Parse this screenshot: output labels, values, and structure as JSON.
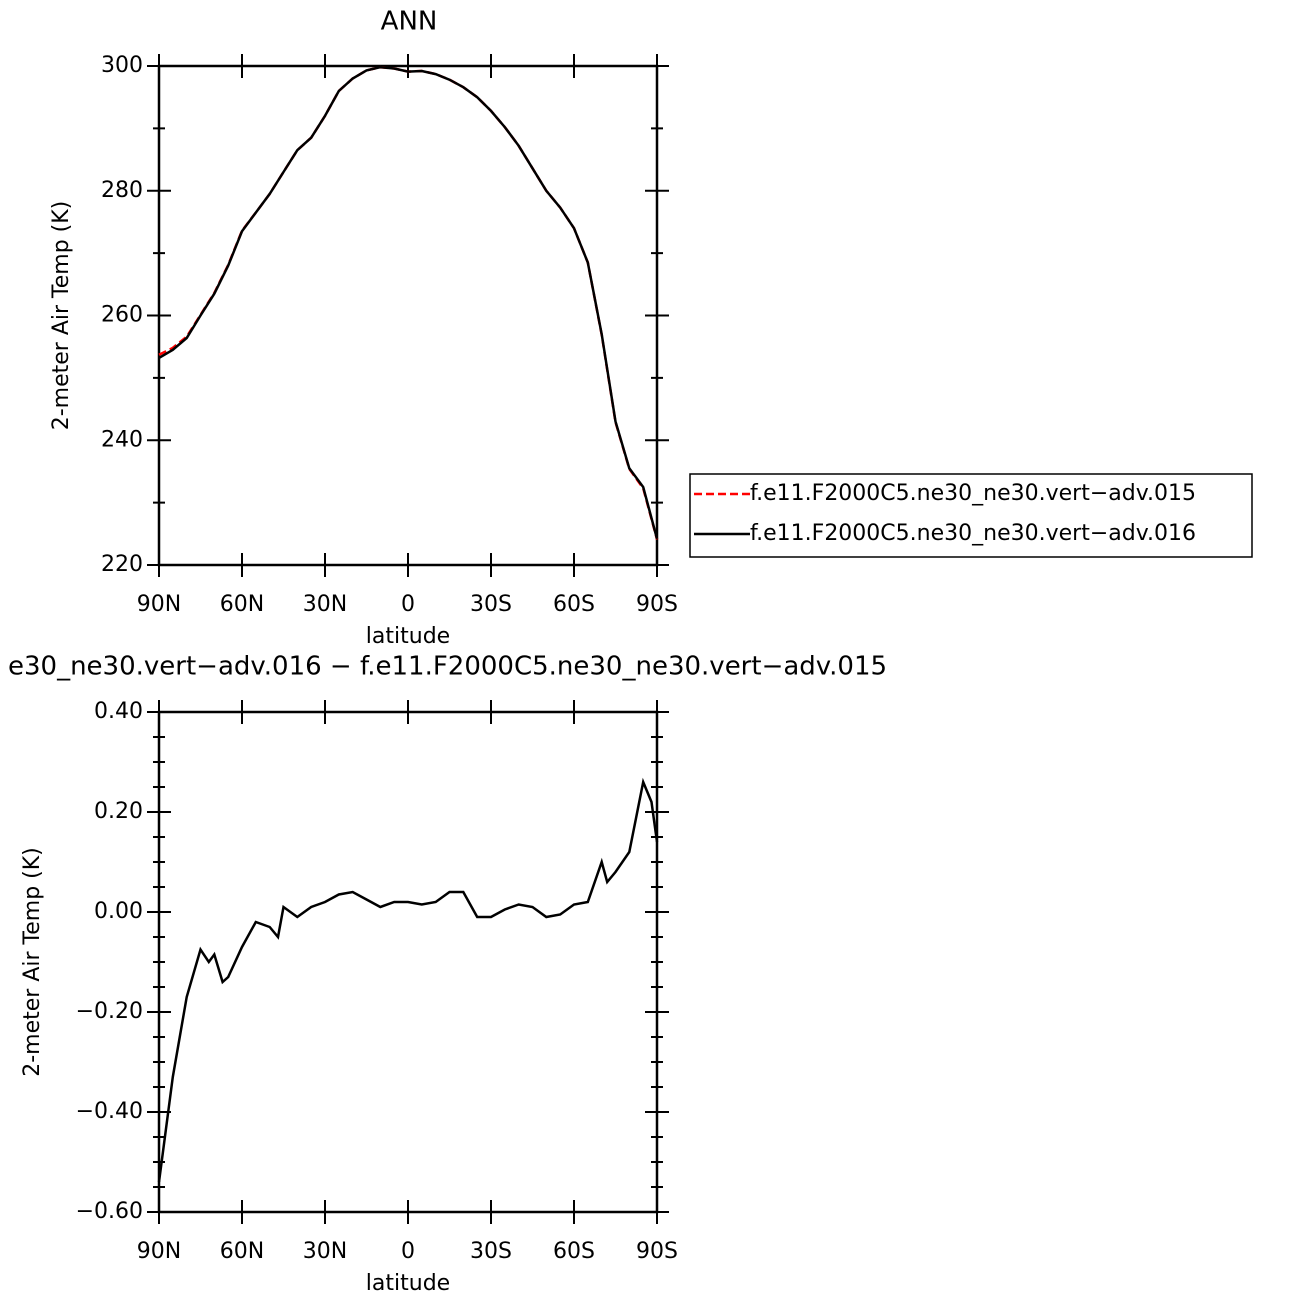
{
  "chart_data": [
    {
      "type": "line",
      "title": "ANN",
      "xlabel": "latitude",
      "ylabel": "2-meter Air Temp (K)",
      "x": [
        90,
        85,
        80,
        75,
        70,
        65,
        60,
        55,
        50,
        45,
        40,
        35,
        30,
        25,
        20,
        15,
        10,
        5,
        0,
        -5,
        -10,
        -15,
        -20,
        -25,
        -30,
        -35,
        -40,
        -45,
        -50,
        -55,
        -60,
        -65,
        -70,
        -75,
        -80,
        -85,
        -90
      ],
      "series": [
        {
          "name": "f.e11.F2000C5.ne30_ne30.vert−adv.015",
          "color": "#ff0000",
          "dash": true,
          "values": [
            253.7,
            254.8,
            256.6,
            260.1,
            263.6,
            268.1,
            273.6,
            276.5,
            279.5,
            283,
            286.5,
            288.5,
            292,
            296,
            298,
            299.3,
            299.8,
            299.6,
            299.1,
            299.2,
            298.7,
            297.8,
            296.6,
            295,
            292.8,
            290.2,
            287.2,
            283.6,
            280,
            277.3,
            274,
            268.5,
            256.9,
            242.9,
            235.4,
            232.3,
            224.1
          ]
        },
        {
          "name": "f.e11.F2000C5.ne30_ne30.vert−adv.016",
          "color": "#000000",
          "dash": false,
          "values": [
            253.2,
            254.5,
            256.4,
            260,
            263.5,
            268,
            273.5,
            276.5,
            279.5,
            283,
            286.5,
            288.5,
            292,
            296,
            298,
            299.3,
            299.8,
            299.6,
            299.1,
            299.2,
            298.7,
            297.8,
            296.6,
            295,
            292.8,
            290.2,
            287.2,
            283.6,
            280,
            277.3,
            274,
            268.5,
            257,
            243,
            235.5,
            232.5,
            224.2
          ]
        }
      ],
      "xlim": [
        90,
        -90
      ],
      "xticks": [
        {
          "value": 90,
          "label": "90N"
        },
        {
          "value": 60,
          "label": "60N"
        },
        {
          "value": 30,
          "label": "30N"
        },
        0,
        {
          "value": -30,
          "label": "30S"
        },
        {
          "value": -60,
          "label": "60S"
        },
        {
          "value": -90,
          "label": "90S"
        }
      ],
      "ylim": [
        220,
        300
      ],
      "yticks": [
        220,
        240,
        260,
        280,
        300
      ],
      "legend": "outside-right"
    },
    {
      "type": "line",
      "title": "e30_ne30.vert−adv.016 − f.e11.F2000C5.ne30_ne30.vert−adv.015",
      "xlabel": "latitude",
      "ylabel": "2-meter Air Temp (K)",
      "x": [
        90,
        85,
        80,
        75,
        72,
        70,
        67,
        65,
        60,
        55,
        50,
        47,
        45,
        40,
        35,
        30,
        25,
        20,
        15,
        10,
        5,
        0,
        -5,
        -10,
        -15,
        -20,
        -25,
        -30,
        -35,
        -40,
        -45,
        -50,
        -55,
        -60,
        -65,
        -70,
        -72,
        -75,
        -80,
        -85,
        -88,
        -90
      ],
      "series": [
        {
          "color": "#000000",
          "dash": false,
          "values": [
            -0.54,
            -0.33,
            -0.17,
            -0.075,
            -0.1,
            -0.085,
            -0.14,
            -0.13,
            -0.07,
            -0.02,
            -0.03,
            -0.05,
            0.01,
            -0.01,
            0.01,
            0.02,
            0.035,
            0.04,
            0.025,
            0.01,
            0.02,
            0.02,
            0.015,
            0.02,
            0.04,
            0.04,
            -0.01,
            -0.01,
            0.005,
            0.015,
            0.01,
            -0.01,
            -0.005,
            0.015,
            0.02,
            0.1,
            0.06,
            0.08,
            0.12,
            0.26,
            0.22,
            0.14
          ]
        }
      ],
      "xlim": [
        90,
        -90
      ],
      "xticks": [
        {
          "value": 90,
          "label": "90N"
        },
        {
          "value": 60,
          "label": "60N"
        },
        {
          "value": 30,
          "label": "30N"
        },
        0,
        {
          "value": -30,
          "label": "30S"
        },
        {
          "value": -60,
          "label": "60S"
        },
        {
          "value": -90,
          "label": "90S"
        }
      ],
      "ylim": [
        -0.6,
        0.4
      ],
      "yticks": [
        {
          "value": -0.6,
          "label": "−0.60"
        },
        {
          "value": -0.4,
          "label": "−0.40"
        },
        {
          "value": -0.2,
          "label": "−0.20"
        },
        {
          "value": 0,
          "label": "0.00"
        },
        {
          "value": 0.2,
          "label": "0.20"
        },
        {
          "value": 0.4,
          "label": "0.40"
        }
      ]
    }
  ]
}
